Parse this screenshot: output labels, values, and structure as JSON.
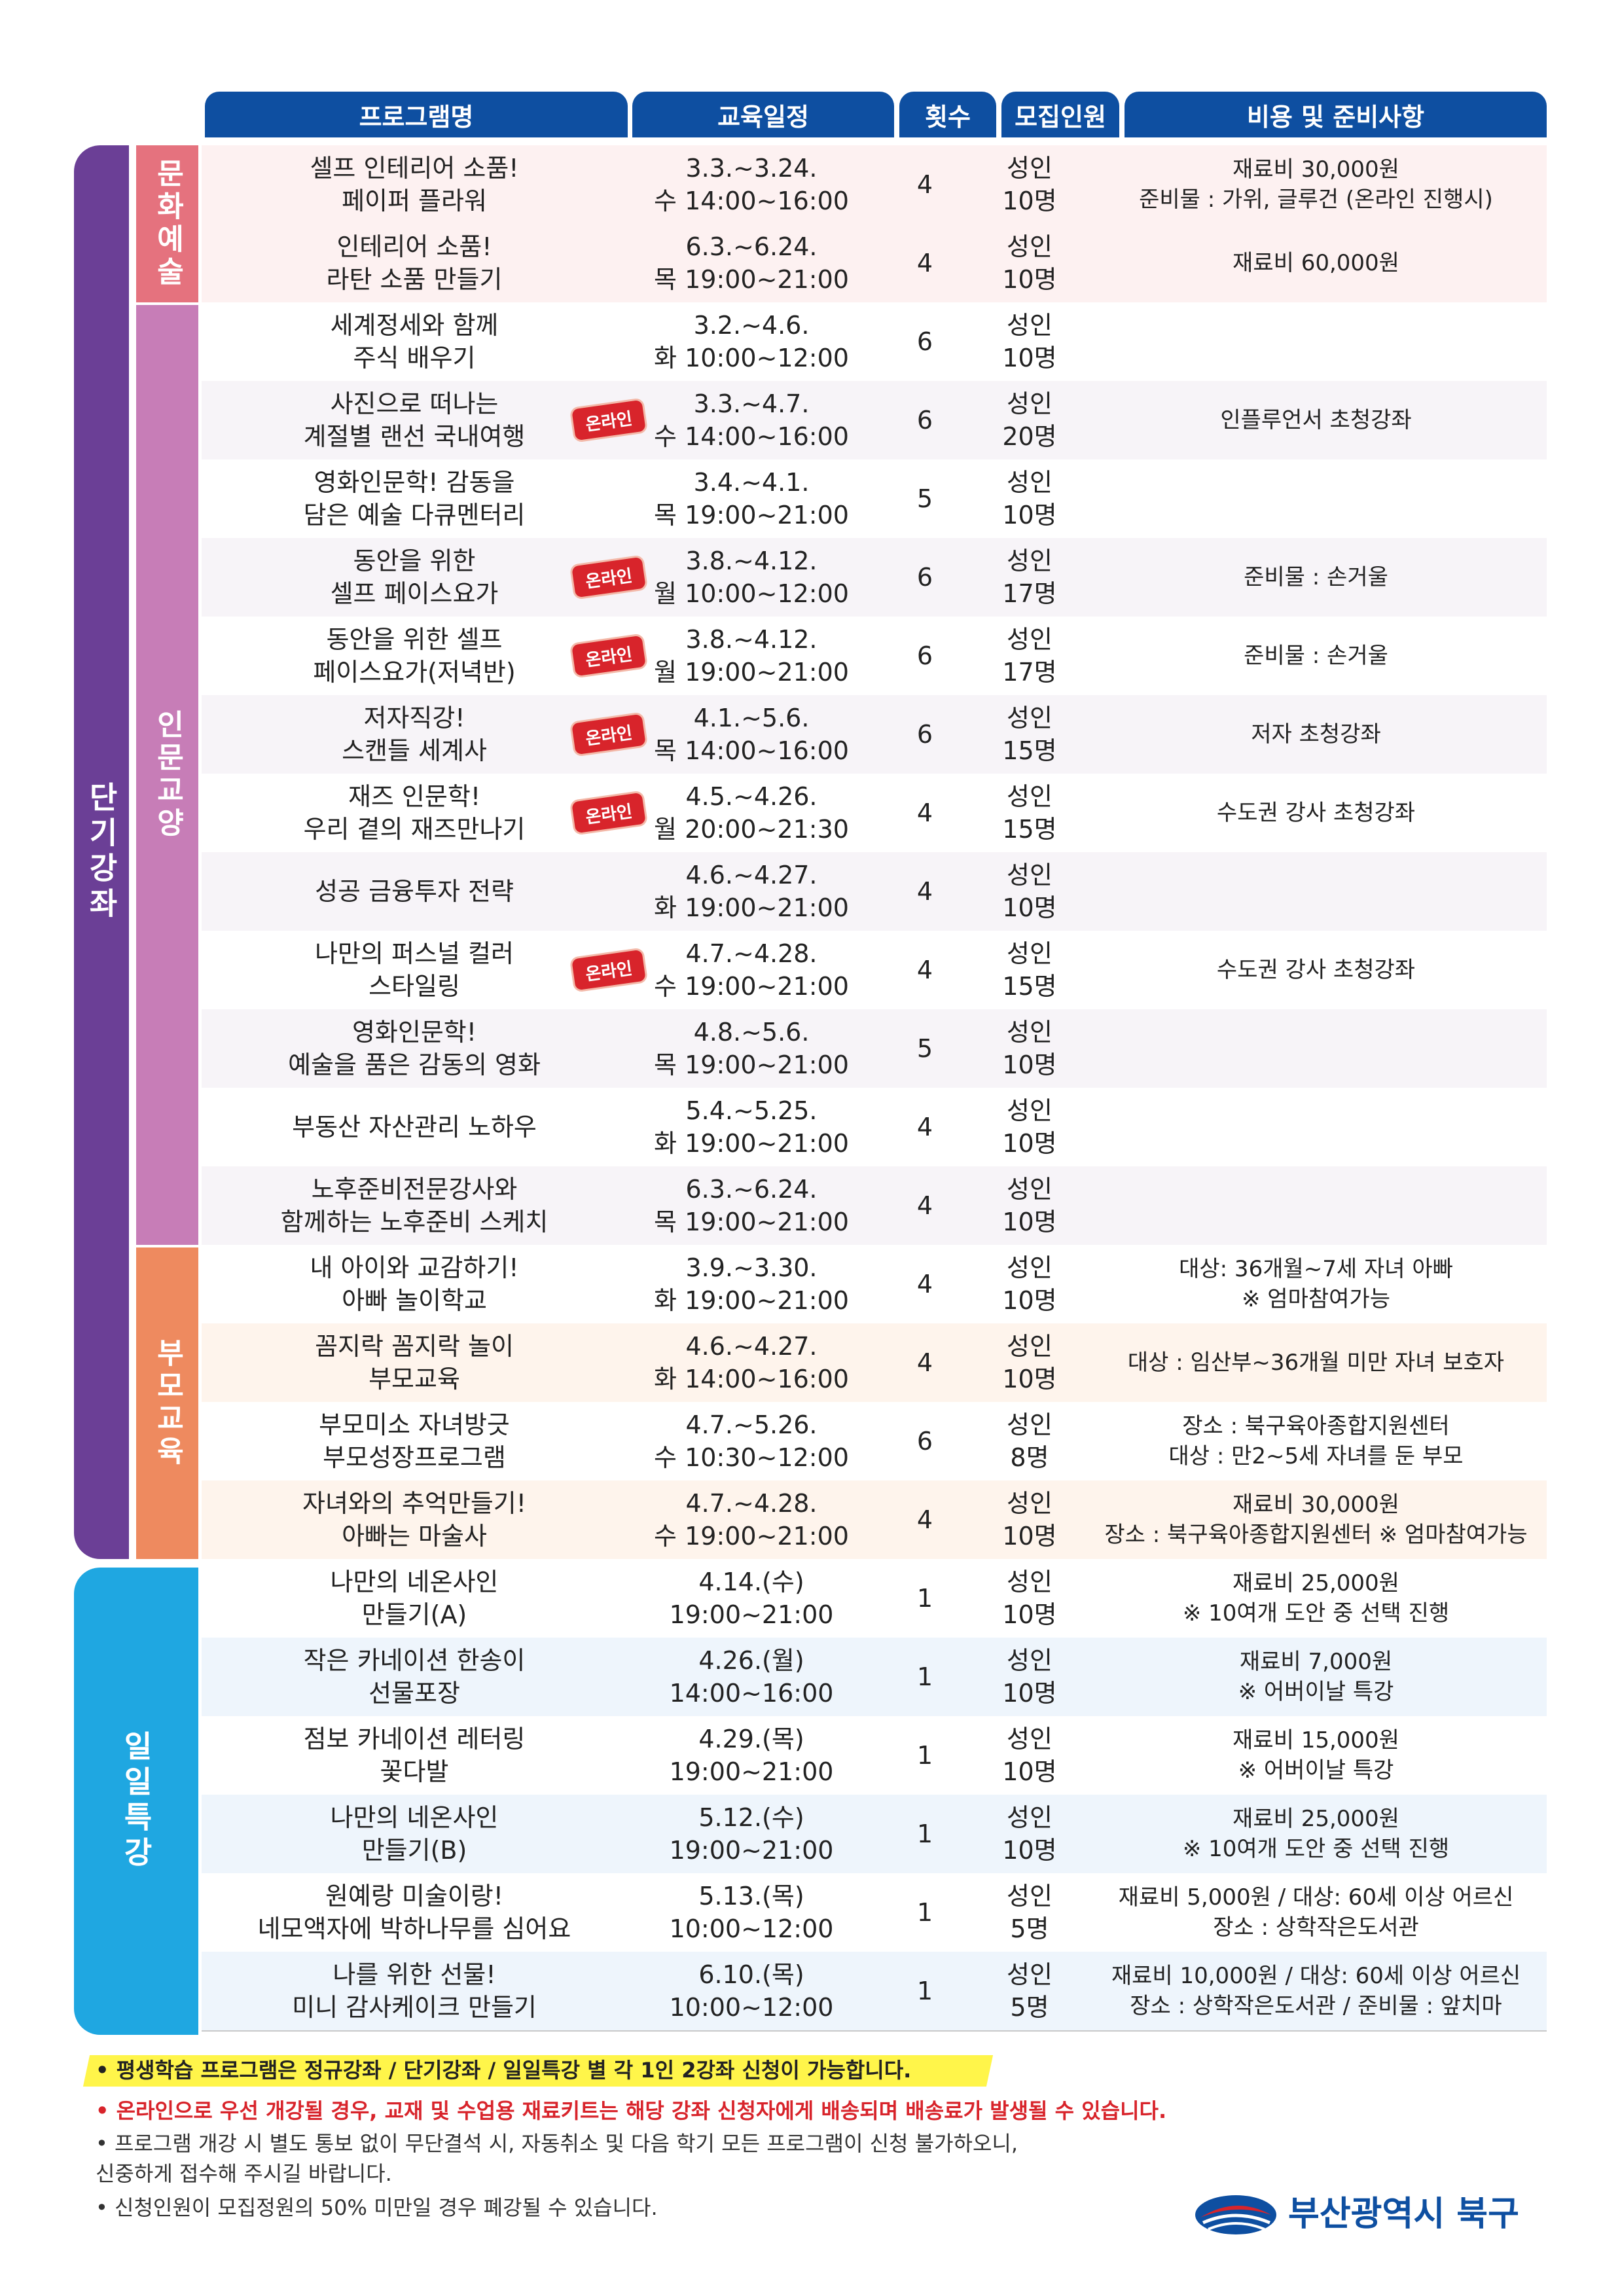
{
  "headers": [
    "프로그램명",
    "교육일정",
    "횟수",
    "모집인원",
    "비용 및 준비사항"
  ],
  "categories": {
    "short": "단기강좌",
    "culture": "문화예술",
    "humanities": "인문교양",
    "parent": "부모교육",
    "daily": "일일특강"
  },
  "online_badge": "온라인",
  "rows": [
    {
      "name1": "셀프 인테리어 소품!",
      "name2": "페이퍼 플라워",
      "date": "3.3.~3.24.",
      "time": "수 14:00~16:00",
      "count": "4",
      "cap1": "성인",
      "cap2": "10명",
      "cost1": "재료비 30,000원",
      "cost2": "준비물 : 가위, 글루건 (온라인 진행시)"
    },
    {
      "name1": "인테리어 소품!",
      "name2": "라탄 소품 만들기",
      "date": "6.3.~6.24.",
      "time": "목 19:00~21:00",
      "count": "4",
      "cap1": "성인",
      "cap2": "10명",
      "cost1": "재료비 60,000원",
      "cost2": ""
    },
    {
      "name1": "세계정세와 함께",
      "name2": "주식 배우기",
      "date": "3.2.~4.6.",
      "time": "화 10:00~12:00",
      "count": "6",
      "cap1": "성인",
      "cap2": "10명",
      "cost1": "",
      "cost2": ""
    },
    {
      "name1": "사진으로 떠나는",
      "name2": "계절별 랜선 국내여행",
      "date": "3.3.~4.7.",
      "time": "수 14:00~16:00",
      "count": "6",
      "cap1": "성인",
      "cap2": "20명",
      "cost1": "인플루언서 초청강좌",
      "cost2": ""
    },
    {
      "name1": "영화인문학! 감동을",
      "name2": "담은 예술 다큐멘터리",
      "date": "3.4.~4.1.",
      "time": "목 19:00~21:00",
      "count": "5",
      "cap1": "성인",
      "cap2": "10명",
      "cost1": "",
      "cost2": ""
    },
    {
      "name1": "동안을 위한",
      "name2": "셀프 페이스요가",
      "date": "3.8.~4.12.",
      "time": "월 10:00~12:00",
      "count": "6",
      "cap1": "성인",
      "cap2": "17명",
      "cost1": "준비물 : 손거울",
      "cost2": ""
    },
    {
      "name1": "동안을 위한 셀프",
      "name2": "페이스요가(저녁반)",
      "date": "3.8.~4.12.",
      "time": "월 19:00~21:00",
      "count": "6",
      "cap1": "성인",
      "cap2": "17명",
      "cost1": "준비물 : 손거울",
      "cost2": ""
    },
    {
      "name1": "저자직강!",
      "name2": "스캔들 세계사",
      "date": "4.1.~5.6.",
      "time": "목 14:00~16:00",
      "count": "6",
      "cap1": "성인",
      "cap2": "15명",
      "cost1": "저자 초청강좌",
      "cost2": ""
    },
    {
      "name1": "재즈 인문학!",
      "name2": "우리 곁의 재즈만나기",
      "date": "4.5.~4.26.",
      "time": "월 20:00~21:30",
      "count": "4",
      "cap1": "성인",
      "cap2": "15명",
      "cost1": "수도권 강사 초청강좌",
      "cost2": ""
    },
    {
      "name1": "성공 금융투자 전략",
      "name2": "",
      "date": "4.6.~4.27.",
      "time": "화 19:00~21:00",
      "count": "4",
      "cap1": "성인",
      "cap2": "10명",
      "cost1": "",
      "cost2": ""
    },
    {
      "name1": "나만의 퍼스널 컬러",
      "name2": "스타일링",
      "date": "4.7.~4.28.",
      "time": "수 19:00~21:00",
      "count": "4",
      "cap1": "성인",
      "cap2": "15명",
      "cost1": "수도권 강사 초청강좌",
      "cost2": ""
    },
    {
      "name1": "영화인문학!",
      "name2": "예술을 품은 감동의 영화",
      "date": "4.8.~5.6.",
      "time": "목 19:00~21:00",
      "count": "5",
      "cap1": "성인",
      "cap2": "10명",
      "cost1": "",
      "cost2": ""
    },
    {
      "name1": "부동산 자산관리 노하우",
      "name2": "",
      "date": "5.4.~5.25.",
      "time": "화 19:00~21:00",
      "count": "4",
      "cap1": "성인",
      "cap2": "10명",
      "cost1": "",
      "cost2": ""
    },
    {
      "name1": "노후준비전문강사와",
      "name2": "함께하는 노후준비 스케치",
      "date": "6.3.~6.24.",
      "time": "목 19:00~21:00",
      "count": "4",
      "cap1": "성인",
      "cap2": "10명",
      "cost1": "",
      "cost2": ""
    },
    {
      "name1": "내 아이와 교감하기!",
      "name2": "아빠 놀이학교",
      "date": "3.9.~3.30.",
      "time": "화 19:00~21:00",
      "count": "4",
      "cap1": "성인",
      "cap2": "10명",
      "cost1": "대상: 36개월~7세 자녀 아빠",
      "cost2": "※ 엄마참여가능"
    },
    {
      "name1": "꼼지락 꼼지락 놀이",
      "name2": "부모교육",
      "date": "4.6.~4.27.",
      "time": "화 14:00~16:00",
      "count": "4",
      "cap1": "성인",
      "cap2": "10명",
      "cost1": "대상 : 임산부~36개월 미만 자녀 보호자",
      "cost2": ""
    },
    {
      "name1": "부모미소 자녀방긋",
      "name2": "부모성장프로그램",
      "date": "4.7.~5.26.",
      "time": "수 10:30~12:00",
      "count": "6",
      "cap1": "성인",
      "cap2": "8명",
      "cost1": "장소 : 북구육아종합지원센터",
      "cost2": "대상 : 만2~5세 자녀를 둔 부모"
    },
    {
      "name1": "자녀와의 추억만들기!",
      "name2": "아빠는 마술사",
      "date": "4.7.~4.28.",
      "time": "수 19:00~21:00",
      "count": "4",
      "cap1": "성인",
      "cap2": "10명",
      "cost1": "재료비 30,000원",
      "cost2": "장소 : 북구육아종합지원센터 ※ 엄마참여가능"
    },
    {
      "name1": "나만의 네온사인",
      "name2": "만들기(A)",
      "date": "4.14.(수)",
      "time": "19:00~21:00",
      "count": "1",
      "cap1": "성인",
      "cap2": "10명",
      "cost1": "재료비 25,000원",
      "cost2": "※ 10여개 도안 중 선택 진행"
    },
    {
      "name1": "작은 카네이션 한송이",
      "name2": "선물포장",
      "date": "4.26.(월)",
      "time": "14:00~16:00",
      "count": "1",
      "cap1": "성인",
      "cap2": "10명",
      "cost1": "재료비 7,000원",
      "cost2": "※ 어버이날 특강"
    },
    {
      "name1": "점보 카네이션 레터링",
      "name2": "꽃다발",
      "date": "4.29.(목)",
      "time": "19:00~21:00",
      "count": "1",
      "cap1": "성인",
      "cap2": "10명",
      "cost1": "재료비 15,000원",
      "cost2": "※ 어버이날 특강"
    },
    {
      "name1": "나만의 네온사인",
      "name2": "만들기(B)",
      "date": "5.12.(수)",
      "time": "19:00~21:00",
      "count": "1",
      "cap1": "성인",
      "cap2": "10명",
      "cost1": "재료비 25,000원",
      "cost2": "※ 10여개 도안 중 선택 진행"
    },
    {
      "name1": "원예랑 미술이랑!",
      "name2": "네모액자에 박하나무를 심어요",
      "date": "5.13.(목)",
      "time": "10:00~12:00",
      "count": "1",
      "cap1": "성인",
      "cap2": "5명",
      "cost1": "재료비 5,000원 / 대상: 60세 이상 어르신",
      "cost2": "장소 : 상학작은도서관"
    },
    {
      "name1": "나를 위한 선물!",
      "name2": "미니 감사케이크 만들기",
      "date": "6.10.(목)",
      "time": "10:00~12:00",
      "count": "1",
      "cap1": "성인",
      "cap2": "5명",
      "cost1": "재료비 10,000원 / 대상: 60세 이상 어르신",
      "cost2": "장소 : 상학작은도서관 / 준비물 : 앞치마"
    }
  ],
  "notes": [
    "• 평생학습 프로그램은 정규강좌 / 단기강좌 / 일일특강 별  각 1인 2강좌 신청이 가능합니다.",
    "• 온라인으로 우선 개강될 경우, 교재 및 수업용 재료키트는 해당 강좌 신청자에게 배송되며 배송료가 발생될 수 있습니다.",
    "• 프로그램 개강 시 별도 통보 없이 무단결석 시, 자동취소 및 다음 학기 모든 프로그램이 신청 불가하오니,",
    "   신중하게 접수해 주시길 바랍니다.",
    "• 신청인원이 모집정원의 50% 미만일 경우 폐강될 수 있습니다."
  ],
  "logo_text": "부산광역시 북구",
  "colors": {
    "header": "#0e4fa1",
    "short": "#6b3f96",
    "culture": "#e5727e",
    "humanities": "#c77db7",
    "parent": "#ee8a5f",
    "daily": "#1fa7e1",
    "badge": "#d8242b",
    "note_red": "#d8242b"
  }
}
